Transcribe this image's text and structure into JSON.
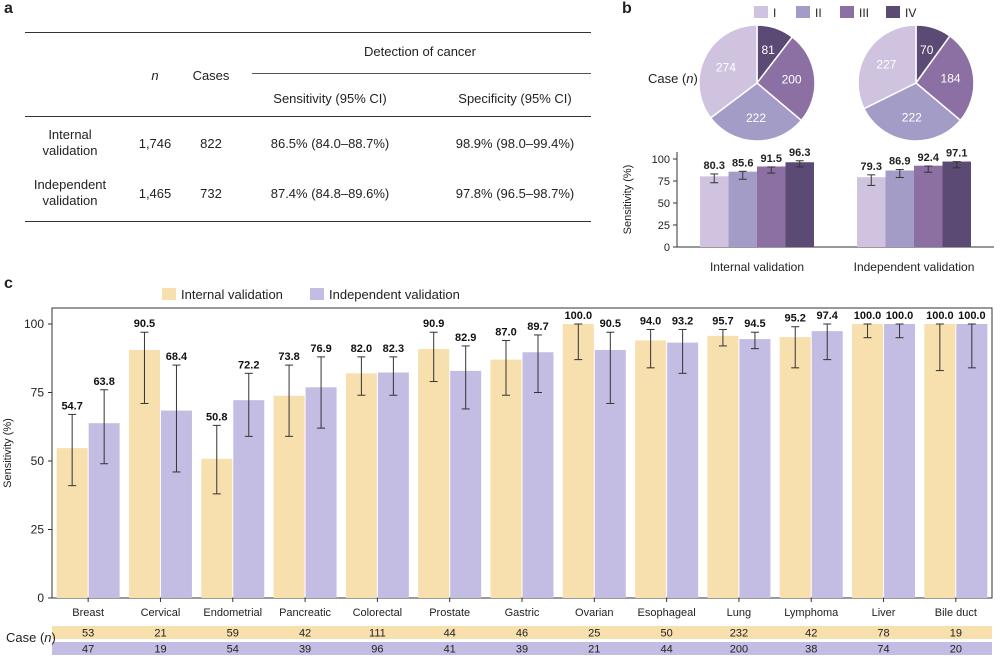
{
  "panels": {
    "a": "a",
    "b": "b",
    "c": "c"
  },
  "table": {
    "header_n": "n",
    "header_cases": "Cases",
    "header_detection": "Detection of cancer",
    "header_sensitivity": "Sensitivity (95% CI)",
    "header_specificity": "Specificity (95% CI)",
    "rows": [
      {
        "label1": "Internal",
        "label2": "validation",
        "n": "1,746",
        "cases": "822",
        "sensitivity": "86.5% (84.0–88.7%)",
        "specificity": "98.9% (98.0–99.4%)"
      },
      {
        "label1": "Independent",
        "label2": "validation",
        "n": "1,465",
        "cases": "732",
        "sensitivity": "87.4% (84.8–89.6%)",
        "specificity": "97.8% (96.5–98.7%)"
      }
    ]
  },
  "chart_data": [
    {
      "type": "pie",
      "title": "Case (n)",
      "stage_labels": [
        "I",
        "II",
        "III",
        "IV"
      ],
      "colors": [
        "#cfc3df",
        "#a39cc6",
        "#8c6fa3",
        "#5b4a73"
      ],
      "pies": [
        {
          "name": "Internal validation",
          "values": [
            274,
            222,
            200,
            81
          ]
        },
        {
          "name": "Independent validation",
          "values": [
            227,
            222,
            184,
            70
          ]
        }
      ]
    },
    {
      "type": "bar",
      "ylabel": "Sensitivity (%)",
      "ylim": [
        0,
        100
      ],
      "yticks": [
        0,
        25,
        50,
        75,
        100
      ],
      "groups": [
        "Internal validation",
        "Independent validation"
      ],
      "series_labels": [
        "I",
        "II",
        "III",
        "IV"
      ],
      "values": [
        [
          80.3,
          85.6,
          91.5,
          96.3
        ],
        [
          79.3,
          86.9,
          92.4,
          97.1
        ]
      ],
      "value_labels": [
        [
          "80.3",
          "85.6",
          "91.5",
          "96.3"
        ],
        [
          "79.3",
          "86.9",
          "92.4",
          "97.1"
        ]
      ],
      "ci": [
        [
          [
            73,
            83
          ],
          [
            77,
            86
          ],
          [
            84,
            91
          ],
          [
            91,
            98
          ]
        ],
        [
          [
            70,
            82
          ],
          [
            79,
            88
          ],
          [
            85,
            92
          ],
          [
            90,
            97
          ]
        ]
      ]
    },
    {
      "type": "bar",
      "ylabel": "Sensitivity (%)",
      "ylim": [
        0,
        100
      ],
      "yticks": [
        0,
        25,
        50,
        75,
        100
      ],
      "legend": [
        "Internal validation",
        "Independent validation"
      ],
      "colors": [
        "#f7dfae",
        "#c3bde3"
      ],
      "categories": [
        "Breast",
        "Cervical",
        "Endometrial",
        "Pancreatic",
        "Colorectal",
        "Prostate",
        "Gastric",
        "Ovarian",
        "Esophageal",
        "Lung",
        "Lymphoma",
        "Liver",
        "Bile duct"
      ],
      "series": [
        {
          "name": "Internal validation",
          "values": [
            54.7,
            90.5,
            50.8,
            73.8,
            82.0,
            90.9,
            87.0,
            100.0,
            94.0,
            95.7,
            95.2,
            100.0,
            100.0
          ],
          "labels": [
            "54.7",
            "90.5",
            "50.8",
            "73.8",
            "82.0",
            "90.9",
            "87.0",
            "100.0",
            "94.0",
            "95.7",
            "95.2",
            "100.0",
            "100.0"
          ],
          "ci": [
            [
              41,
              67
            ],
            [
              71,
              97
            ],
            [
              38,
              63
            ],
            [
              59,
              85
            ],
            [
              74,
              88
            ],
            [
              79,
              97
            ],
            [
              74,
              94
            ],
            [
              87,
              100
            ],
            [
              84,
              98
            ],
            [
              92,
              98
            ],
            [
              84,
              99
            ],
            [
              95,
              100
            ],
            [
              83,
              100
            ]
          ],
          "cases": [
            "53",
            "21",
            "59",
            "42",
            "111",
            "44",
            "46",
            "25",
            "50",
            "232",
            "42",
            "78",
            "19"
          ]
        },
        {
          "name": "Independent validation",
          "values": [
            63.8,
            68.4,
            72.2,
            76.9,
            82.3,
            82.9,
            89.7,
            90.5,
            93.2,
            94.5,
            97.4,
            100.0,
            100.0
          ],
          "labels": [
            "63.8",
            "68.4",
            "72.2",
            "76.9",
            "82.3",
            "82.9",
            "89.7",
            "90.5",
            "93.2",
            "94.5",
            "97.4",
            "100.0",
            "100.0"
          ],
          "ci": [
            [
              49,
              76
            ],
            [
              46,
              85
            ],
            [
              59,
              82
            ],
            [
              62,
              88
            ],
            [
              74,
              88
            ],
            [
              69,
              92
            ],
            [
              75,
              96
            ],
            [
              71,
              97
            ],
            [
              82,
              98
            ],
            [
              91,
              97
            ],
            [
              87,
              100
            ],
            [
              95,
              100
            ],
            [
              84,
              100
            ]
          ],
          "cases": [
            "47",
            "19",
            "54",
            "39",
            "96",
            "41",
            "39",
            "21",
            "44",
            "200",
            "38",
            "74",
            "20"
          ]
        }
      ],
      "case_label": "Case (n)"
    }
  ]
}
